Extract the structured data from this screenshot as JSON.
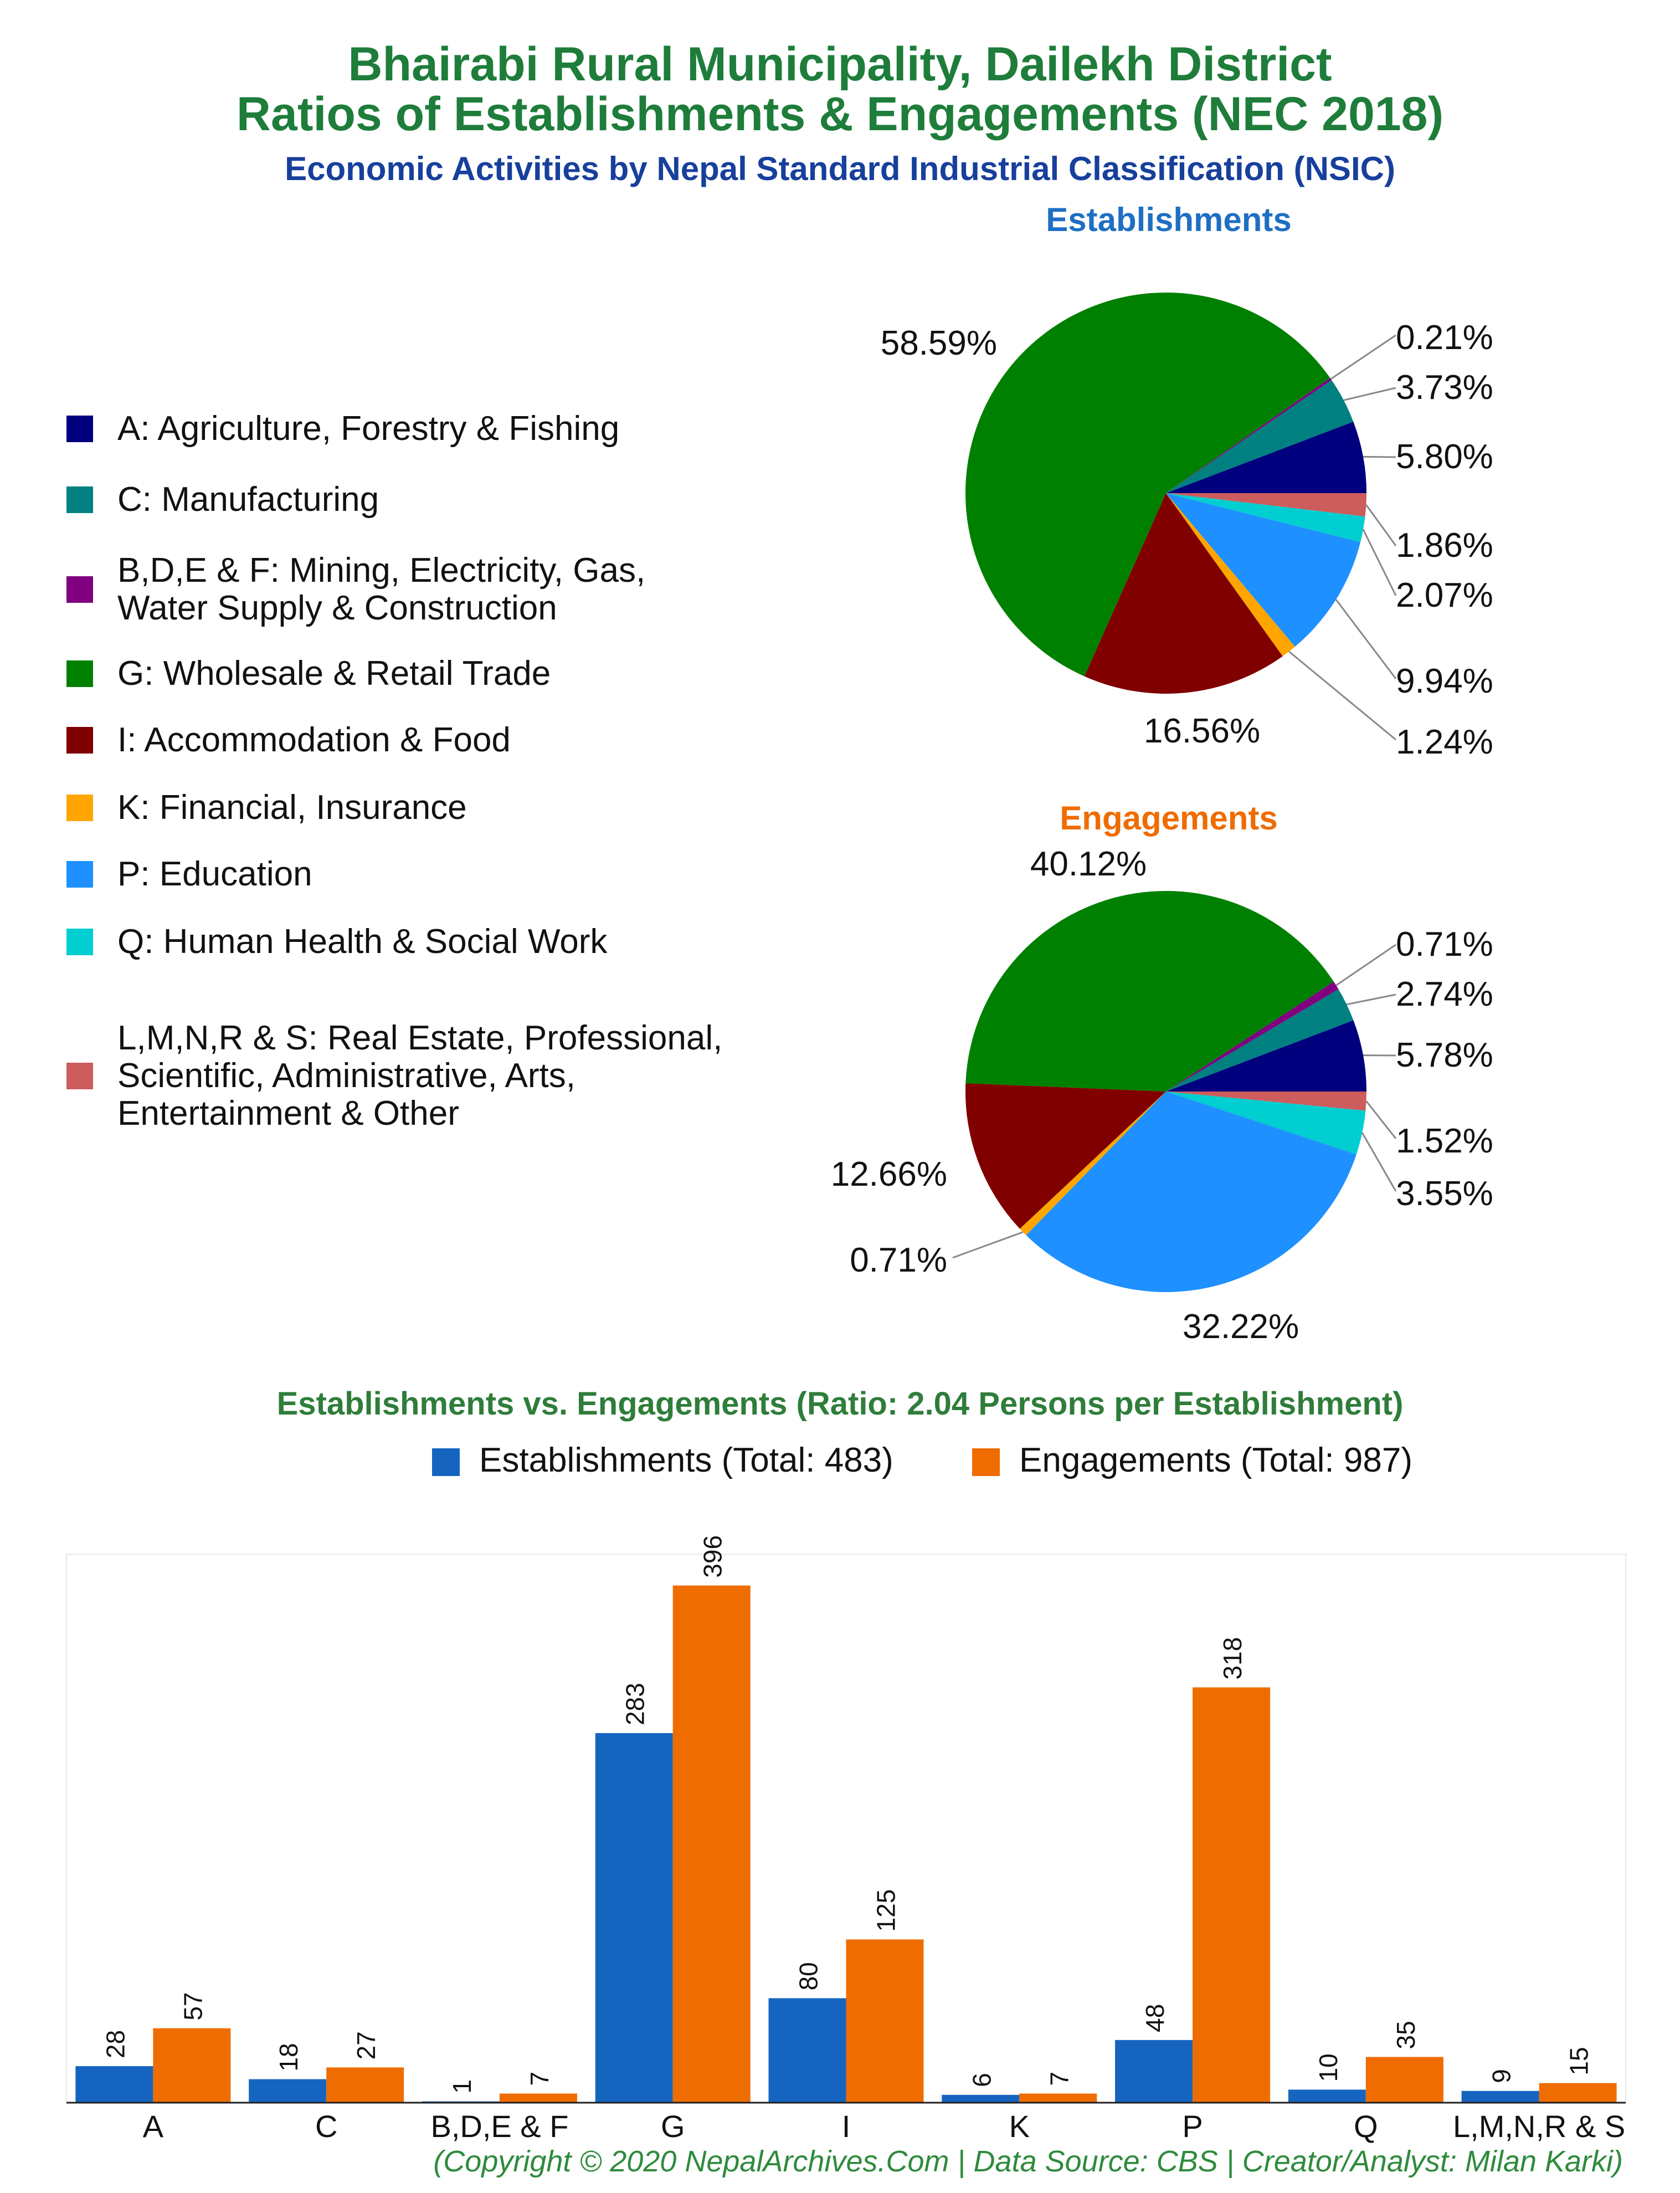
{
  "header": {
    "title_line1": "Bhairabi Rural Municipality, Dailekh District",
    "title_line2": "Ratios of Establishments & Engagements (NEC 2018)",
    "subtitle": "Economic Activities by Nepal Standard Industrial Classification (NSIC)"
  },
  "colors": {
    "title": "#1e7d3a",
    "subtitle": "#173f9c",
    "establishments": "#1565c0",
    "engagements": "#ef6c00",
    "establishments_title": "#1e6fc4",
    "engagements_title": "#ef6c00"
  },
  "legend": {
    "items": [
      {
        "label": "A: Agriculture, Forestry & Fishing",
        "color": "#00007f"
      },
      {
        "label": "C: Manufacturing",
        "color": "#008080"
      },
      {
        "label": "B,D,E & F: Mining, Electricity, Gas,\nWater Supply & Construction",
        "color": "#800080"
      },
      {
        "label": "G: Wholesale & Retail Trade",
        "color": "#008000"
      },
      {
        "label": "I: Accommodation & Food",
        "color": "#800000"
      },
      {
        "label": "K: Financial, Insurance",
        "color": "#ffa500"
      },
      {
        "label": "P: Education",
        "color": "#1e90ff"
      },
      {
        "label": "Q: Human Health & Social Work",
        "color": "#00ced1"
      },
      {
        "label": "L,M,N,R & S: Real Estate, Professional,\nScientific, Administrative, Arts,\nEntertainment & Other",
        "color": "#cd5c5c"
      }
    ]
  },
  "chart_data": [
    {
      "type": "pie",
      "title": "Establishments",
      "slices": [
        {
          "category": "A",
          "value": 5.8,
          "label": "5.80%"
        },
        {
          "category": "C",
          "value": 3.73,
          "label": "3.73%"
        },
        {
          "category": "B,D,E & F",
          "value": 0.21,
          "label": "0.21%"
        },
        {
          "category": "G",
          "value": 58.59,
          "label": "58.59%"
        },
        {
          "category": "I",
          "value": 16.56,
          "label": "16.56%"
        },
        {
          "category": "K",
          "value": 1.24,
          "label": "1.24%"
        },
        {
          "category": "P",
          "value": 9.94,
          "label": "9.94%"
        },
        {
          "category": "Q",
          "value": 2.07,
          "label": "2.07%"
        },
        {
          "category": "L,M,N,R & S",
          "value": 1.86,
          "label": "1.86%"
        }
      ]
    },
    {
      "type": "pie",
      "title": "Engagements",
      "slices": [
        {
          "category": "A",
          "value": 5.78,
          "label": "5.78%"
        },
        {
          "category": "C",
          "value": 2.74,
          "label": "2.74%"
        },
        {
          "category": "B,D,E & F",
          "value": 0.71,
          "label": "0.71%"
        },
        {
          "category": "G",
          "value": 40.12,
          "label": "40.12%"
        },
        {
          "category": "I",
          "value": 12.66,
          "label": "12.66%"
        },
        {
          "category": "K",
          "value": 0.71,
          "label": "0.71%"
        },
        {
          "category": "P",
          "value": 32.22,
          "label": "32.22%"
        },
        {
          "category": "Q",
          "value": 3.55,
          "label": "3.55%"
        },
        {
          "category": "L,M,N,R & S",
          "value": 1.52,
          "label": "1.52%"
        }
      ]
    },
    {
      "type": "bar",
      "title": "Establishments vs. Engagements (Ratio: 2.04 Persons per Establishment)",
      "categories": [
        "A",
        "C",
        "B,D,E & F",
        "G",
        "I",
        "K",
        "P",
        "Q",
        "L,M,N,R & S"
      ],
      "series": [
        {
          "name": "Establishments (Total: 483)",
          "values": [
            28,
            18,
            1,
            283,
            80,
            6,
            48,
            10,
            9
          ]
        },
        {
          "name": "Engagements (Total: 987)",
          "values": [
            57,
            27,
            7,
            396,
            125,
            7,
            318,
            35,
            15
          ]
        }
      ],
      "ylim": [
        0,
        420
      ],
      "legend": "top-center",
      "grid": false
    }
  ],
  "footer": {
    "text": "(Copyright © 2020 NepalArchives.Com | Data Source: CBS | Creator/Analyst: Milan Karki)"
  }
}
